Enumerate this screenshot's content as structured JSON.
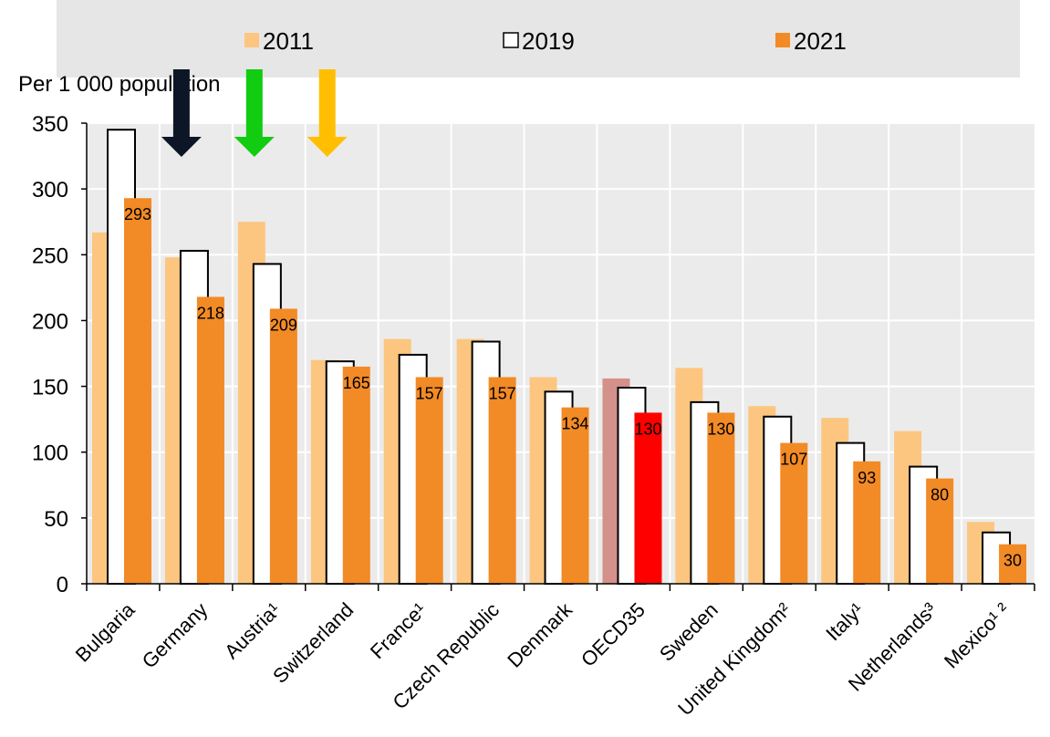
{
  "chart_data": {
    "type": "bar",
    "ylabel": "Per 1 000 population",
    "ylim": [
      0,
      350
    ],
    "yticks": [
      0,
      50,
      100,
      150,
      200,
      250,
      300,
      350
    ],
    "grid": true,
    "legend_position": "top",
    "categories": [
      "Bulgaria",
      "Germany",
      "Austria¹",
      "Switzerland",
      "France¹",
      "Czech Republic",
      "Denmark",
      "OECD35",
      "Sweden",
      "United Kingdom²",
      "Italy¹",
      "Netherlands³",
      "Mexico¹ ²"
    ],
    "highlight_category": "OECD35",
    "series": [
      {
        "name": "2011",
        "values": [
          267,
          248,
          275,
          170,
          186,
          186,
          157,
          156,
          164,
          135,
          126,
          116,
          47
        ],
        "color": "#fcc680",
        "highlight_color": "#d4908a"
      },
      {
        "name": "2019",
        "values": [
          345,
          253,
          243,
          169,
          174,
          184,
          146,
          149,
          138,
          127,
          107,
          89,
          39
        ],
        "color": "#ffffff",
        "highlight_color": "#ffffff"
      },
      {
        "name": "2021",
        "values": [
          293,
          218,
          209,
          165,
          157,
          157,
          134,
          130,
          130,
          107,
          93,
          80,
          30
        ],
        "color": "#f28a26",
        "highlight_color": "#ff0000",
        "labels": [
          "293",
          "218",
          "209",
          "165",
          "157",
          "157",
          "134",
          "130",
          "130",
          "107",
          "93",
          "80",
          "30"
        ]
      }
    ],
    "arrows": [
      {
        "category": "Germany",
        "color": "#0d1626"
      },
      {
        "category": "Austria¹",
        "color": "#11cc11"
      },
      {
        "category": "Switzerland",
        "color": "#ffbf00"
      }
    ]
  }
}
